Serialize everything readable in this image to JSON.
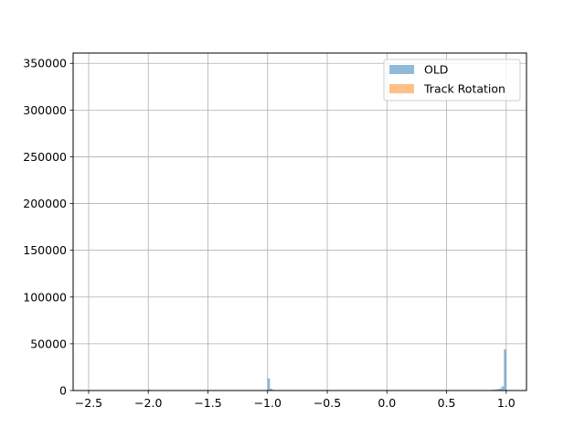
{
  "chart_data": {
    "type": "bar",
    "title": "",
    "xlabel": "",
    "ylabel": "",
    "xlim": [
      -2.63,
      1.17
    ],
    "ylim": [
      0,
      361000
    ],
    "x_ticks": [
      -2.5,
      -2.0,
      -1.5,
      -1.0,
      -0.5,
      0.0,
      0.5,
      1.0
    ],
    "x_tick_labels": [
      "−2.5",
      "−2.0",
      "−1.5",
      "−1.0",
      "−0.5",
      "0.0",
      "0.5",
      "1.0"
    ],
    "y_ticks": [
      0,
      50000,
      100000,
      150000,
      200000,
      250000,
      300000,
      350000
    ],
    "y_tick_labels": [
      "0",
      "50000",
      "100000",
      "150000",
      "200000",
      "250000",
      "300000",
      "350000"
    ],
    "grid": true,
    "legend_position": "upper-right",
    "series": [
      {
        "name": "OLD",
        "color": "#1f77b4",
        "alpha": 0.5,
        "bin_width": 0.02,
        "bins": [
          {
            "x": -2.0,
            "count": 800
          },
          {
            "x": -1.0,
            "count": 13000
          },
          {
            "x": -0.98,
            "count": 2000
          },
          {
            "x": -0.96,
            "count": 600
          },
          {
            "x": 0.84,
            "count": 300
          },
          {
            "x": 0.86,
            "count": 500
          },
          {
            "x": 0.88,
            "count": 800
          },
          {
            "x": 0.9,
            "count": 1000
          },
          {
            "x": 0.92,
            "count": 1500
          },
          {
            "x": 0.94,
            "count": 2200
          },
          {
            "x": 0.96,
            "count": 4500
          },
          {
            "x": 0.98,
            "count": 44000
          }
        ]
      },
      {
        "name": "Track Rotation",
        "color": "#ff7f0e",
        "alpha": 0.5,
        "bin_width": 0.02,
        "bins": []
      }
    ]
  }
}
